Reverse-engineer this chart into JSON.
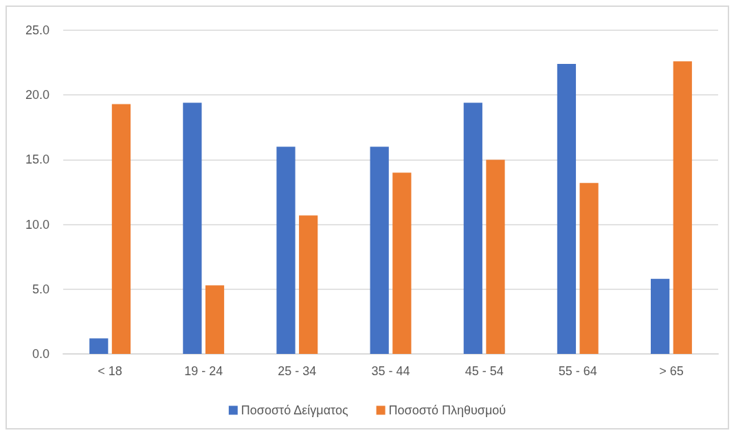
{
  "chart_data": {
    "type": "bar",
    "categories": [
      "< 18",
      "19 - 24",
      "25 - 34",
      "35 - 44",
      "45 - 54",
      "55 - 64",
      "> 65"
    ],
    "series": [
      {
        "name": "Ποσοστό Δείγματος",
        "color": "#4472c4",
        "values": [
          1.2,
          19.4,
          16.0,
          16.0,
          19.4,
          22.4,
          5.8
        ]
      },
      {
        "name": "Ποσοστό Πληθυσμού",
        "color": "#ed7d31",
        "values": [
          19.3,
          5.3,
          10.7,
          14.0,
          15.0,
          13.2,
          22.6
        ]
      }
    ],
    "ylim": [
      0,
      25
    ],
    "yticks": [
      {
        "value": 0,
        "label": "0.0"
      },
      {
        "value": 5,
        "label": "5.0"
      },
      {
        "value": 10,
        "label": "10.0"
      },
      {
        "value": 15,
        "label": "15.0"
      },
      {
        "value": 20,
        "label": "20.0"
      },
      {
        "value": 25,
        "label": "25.0"
      }
    ],
    "grid": "y",
    "legend": "bottom"
  }
}
